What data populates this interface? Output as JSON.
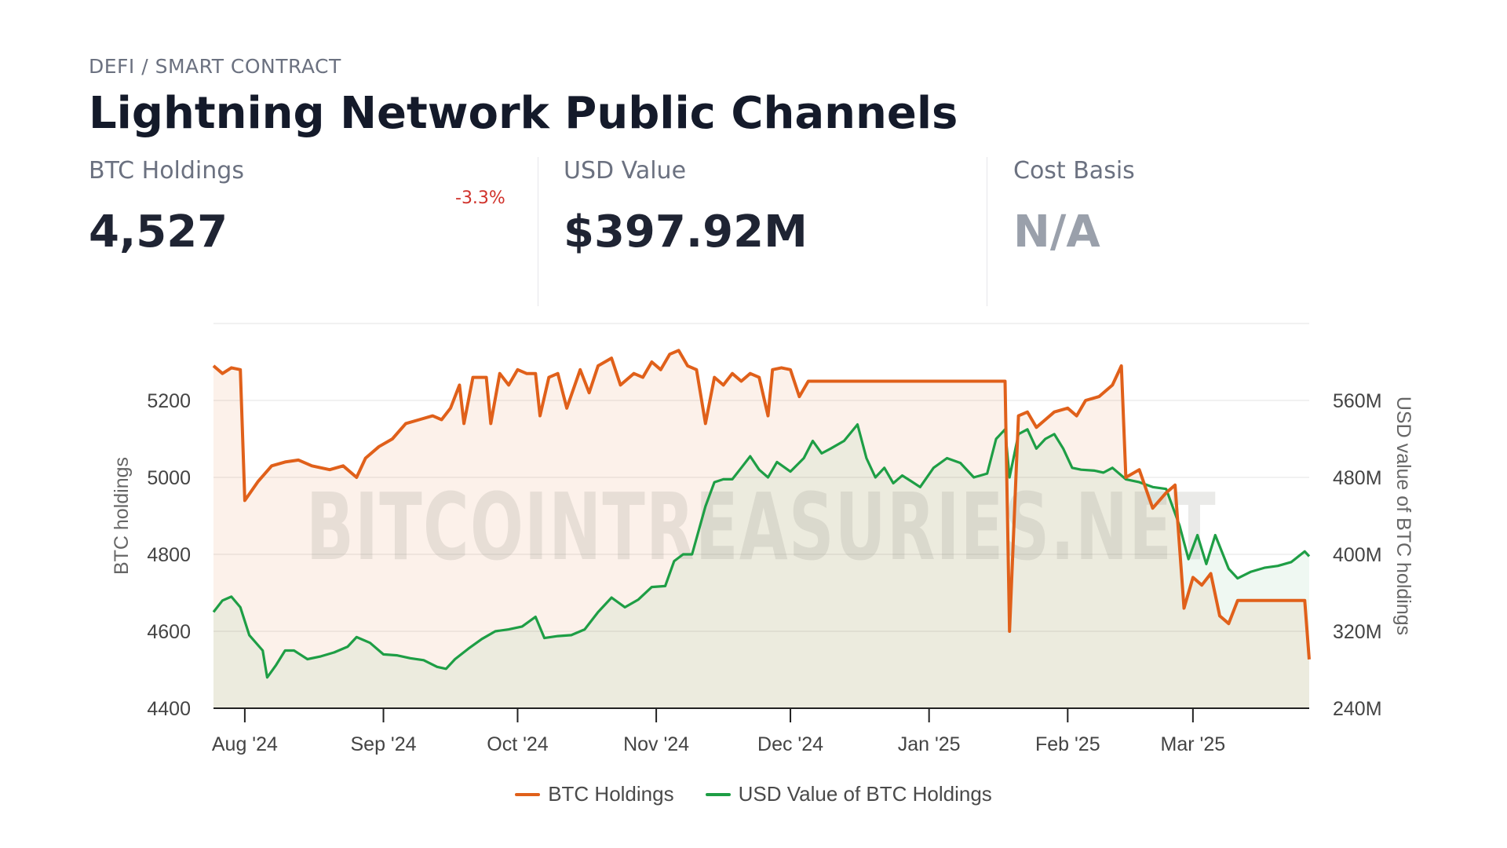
{
  "header": {
    "category": "DEFI / SMART CONTRACT",
    "title": "Lightning Network Public Channels"
  },
  "stats": {
    "btc_holdings": {
      "label": "BTC Holdings",
      "value": "4,527",
      "change": "-3.3%"
    },
    "usd_value": {
      "label": "USD Value",
      "value": "$397.92M"
    },
    "cost_basis": {
      "label": "Cost Basis",
      "value": "N/A"
    }
  },
  "colors": {
    "btc": "#e0601a",
    "usd": "#1e9e45",
    "change_negative": "#d0322b"
  },
  "chart_data": {
    "type": "line",
    "watermark": "BITCOINTREASURIES.NET",
    "x_ticks": [
      "Aug '24",
      "Sep '24",
      "Oct '24",
      "Nov '24",
      "Dec '24",
      "Jan '25",
      "Feb '25",
      "Mar '25"
    ],
    "x_tick_dates": [
      "2024-08-01",
      "2024-09-01",
      "2024-10-01",
      "2024-11-01",
      "2024-12-01",
      "2025-01-01",
      "2025-02-01",
      "2025-03-01"
    ],
    "x_range": [
      "2024-07-25",
      "2025-03-27"
    ],
    "y_left": {
      "label": "BTC holdings",
      "ticks": [
        "5200",
        "5000",
        "4800",
        "4600",
        "4400"
      ],
      "min": 4400,
      "max": 5400
    },
    "y_right": {
      "label": "USD value of BTC holdings",
      "ticks": [
        "560M",
        "480M",
        "400M",
        "320M",
        "240M"
      ],
      "min": 240,
      "max": 640,
      "unit": "M"
    },
    "grid": true,
    "legend_position": "bottom-center",
    "series": [
      {
        "name": "BTC Holdings",
        "axis": "left",
        "points": [
          [
            "2024-07-25",
            5290
          ],
          [
            "2024-07-27",
            5270
          ],
          [
            "2024-07-29",
            5285
          ],
          [
            "2024-07-31",
            5280
          ],
          [
            "2024-08-01",
            4940
          ],
          [
            "2024-08-04",
            4990
          ],
          [
            "2024-08-07",
            5030
          ],
          [
            "2024-08-10",
            5040
          ],
          [
            "2024-08-13",
            5045
          ],
          [
            "2024-08-16",
            5030
          ],
          [
            "2024-08-20",
            5020
          ],
          [
            "2024-08-23",
            5030
          ],
          [
            "2024-08-26",
            5000
          ],
          [
            "2024-08-28",
            5050
          ],
          [
            "2024-08-31",
            5080
          ],
          [
            "2024-09-03",
            5100
          ],
          [
            "2024-09-06",
            5140
          ],
          [
            "2024-09-09",
            5150
          ],
          [
            "2024-09-12",
            5160
          ],
          [
            "2024-09-14",
            5150
          ],
          [
            "2024-09-16",
            5180
          ],
          [
            "2024-09-18",
            5240
          ],
          [
            "2024-09-19",
            5140
          ],
          [
            "2024-09-21",
            5260
          ],
          [
            "2024-09-24",
            5260
          ],
          [
            "2024-09-25",
            5140
          ],
          [
            "2024-09-27",
            5270
          ],
          [
            "2024-09-29",
            5240
          ],
          [
            "2024-10-01",
            5280
          ],
          [
            "2024-10-03",
            5270
          ],
          [
            "2024-10-05",
            5270
          ],
          [
            "2024-10-06",
            5160
          ],
          [
            "2024-10-08",
            5260
          ],
          [
            "2024-10-10",
            5270
          ],
          [
            "2024-10-12",
            5180
          ],
          [
            "2024-10-15",
            5280
          ],
          [
            "2024-10-17",
            5220
          ],
          [
            "2024-10-19",
            5290
          ],
          [
            "2024-10-22",
            5310
          ],
          [
            "2024-10-24",
            5240
          ],
          [
            "2024-10-27",
            5270
          ],
          [
            "2024-10-29",
            5260
          ],
          [
            "2024-10-31",
            5300
          ],
          [
            "2024-11-02",
            5280
          ],
          [
            "2024-11-04",
            5320
          ],
          [
            "2024-11-06",
            5330
          ],
          [
            "2024-11-08",
            5290
          ],
          [
            "2024-11-10",
            5280
          ],
          [
            "2024-11-12",
            5140
          ],
          [
            "2024-11-14",
            5260
          ],
          [
            "2024-11-16",
            5240
          ],
          [
            "2024-11-18",
            5270
          ],
          [
            "2024-11-20",
            5250
          ],
          [
            "2024-11-22",
            5270
          ],
          [
            "2024-11-24",
            5260
          ],
          [
            "2024-11-26",
            5160
          ],
          [
            "2024-11-27",
            5280
          ],
          [
            "2024-11-29",
            5285
          ],
          [
            "2024-12-01",
            5280
          ],
          [
            "2024-12-03",
            5210
          ],
          [
            "2024-12-05",
            5250
          ],
          [
            "2024-12-20",
            5250
          ],
          [
            "2025-01-10",
            5250
          ],
          [
            "2025-01-18",
            5250
          ],
          [
            "2025-01-19",
            4600
          ],
          [
            "2025-01-21",
            5160
          ],
          [
            "2025-01-23",
            5170
          ],
          [
            "2025-01-25",
            5130
          ],
          [
            "2025-01-27",
            5150
          ],
          [
            "2025-01-29",
            5170
          ],
          [
            "2025-02-01",
            5180
          ],
          [
            "2025-02-03",
            5160
          ],
          [
            "2025-02-05",
            5200
          ],
          [
            "2025-02-08",
            5210
          ],
          [
            "2025-02-11",
            5240
          ],
          [
            "2025-02-13",
            5290
          ],
          [
            "2025-02-14",
            5000
          ],
          [
            "2025-02-17",
            5020
          ],
          [
            "2025-02-20",
            4920
          ],
          [
            "2025-02-23",
            4960
          ],
          [
            "2025-02-25",
            4980
          ],
          [
            "2025-02-27",
            4660
          ],
          [
            "2025-03-01",
            4740
          ],
          [
            "2025-03-03",
            4720
          ],
          [
            "2025-03-05",
            4750
          ],
          [
            "2025-03-07",
            4640
          ],
          [
            "2025-03-09",
            4620
          ],
          [
            "2025-03-11",
            4680
          ],
          [
            "2025-03-20",
            4680
          ],
          [
            "2025-03-26",
            4680
          ],
          [
            "2025-03-27",
            4527
          ]
        ]
      },
      {
        "name": "USD Value of BTC Holdings",
        "axis": "right",
        "points": [
          [
            "2024-07-25",
            340
          ],
          [
            "2024-07-27",
            352
          ],
          [
            "2024-07-29",
            356
          ],
          [
            "2024-07-31",
            345
          ],
          [
            "2024-08-02",
            316
          ],
          [
            "2024-08-05",
            300
          ],
          [
            "2024-08-06",
            272
          ],
          [
            "2024-08-08",
            285
          ],
          [
            "2024-08-10",
            300
          ],
          [
            "2024-08-12",
            300
          ],
          [
            "2024-08-15",
            291
          ],
          [
            "2024-08-18",
            294
          ],
          [
            "2024-08-21",
            298
          ],
          [
            "2024-08-24",
            304
          ],
          [
            "2024-08-26",
            314
          ],
          [
            "2024-08-29",
            308
          ],
          [
            "2024-09-01",
            296
          ],
          [
            "2024-09-04",
            295
          ],
          [
            "2024-09-07",
            292
          ],
          [
            "2024-09-10",
            290
          ],
          [
            "2024-09-13",
            283
          ],
          [
            "2024-09-15",
            281
          ],
          [
            "2024-09-17",
            291
          ],
          [
            "2024-09-20",
            302
          ],
          [
            "2024-09-23",
            312
          ],
          [
            "2024-09-26",
            320
          ],
          [
            "2024-09-29",
            322
          ],
          [
            "2024-10-02",
            325
          ],
          [
            "2024-10-05",
            335
          ],
          [
            "2024-10-07",
            313
          ],
          [
            "2024-10-10",
            315
          ],
          [
            "2024-10-13",
            316
          ],
          [
            "2024-10-16",
            322
          ],
          [
            "2024-10-19",
            340
          ],
          [
            "2024-10-22",
            355
          ],
          [
            "2024-10-25",
            345
          ],
          [
            "2024-10-28",
            353
          ],
          [
            "2024-10-31",
            366
          ],
          [
            "2024-11-03",
            367
          ],
          [
            "2024-11-05",
            393
          ],
          [
            "2024-11-07",
            400
          ],
          [
            "2024-11-09",
            400
          ],
          [
            "2024-11-12",
            450
          ],
          [
            "2024-11-14",
            475
          ],
          [
            "2024-11-16",
            478
          ],
          [
            "2024-11-18",
            478
          ],
          [
            "2024-11-20",
            490
          ],
          [
            "2024-11-22",
            502
          ],
          [
            "2024-11-24",
            488
          ],
          [
            "2024-11-26",
            480
          ],
          [
            "2024-11-28",
            496
          ],
          [
            "2024-12-01",
            486
          ],
          [
            "2024-12-04",
            500
          ],
          [
            "2024-12-06",
            518
          ],
          [
            "2024-12-08",
            505
          ],
          [
            "2024-12-10",
            510
          ],
          [
            "2024-12-13",
            518
          ],
          [
            "2024-12-16",
            535
          ],
          [
            "2024-12-18",
            500
          ],
          [
            "2024-12-20",
            480
          ],
          [
            "2024-12-22",
            490
          ],
          [
            "2024-12-24",
            474
          ],
          [
            "2024-12-26",
            482
          ],
          [
            "2024-12-28",
            476
          ],
          [
            "2024-12-30",
            470
          ],
          [
            "2025-01-02",
            490
          ],
          [
            "2025-01-05",
            500
          ],
          [
            "2025-01-08",
            495
          ],
          [
            "2025-01-11",
            480
          ],
          [
            "2025-01-14",
            484
          ],
          [
            "2025-01-16",
            520
          ],
          [
            "2025-01-18",
            530
          ],
          [
            "2025-01-19",
            480
          ],
          [
            "2025-01-21",
            525
          ],
          [
            "2025-01-23",
            530
          ],
          [
            "2025-01-25",
            510
          ],
          [
            "2025-01-27",
            520
          ],
          [
            "2025-01-29",
            525
          ],
          [
            "2025-01-31",
            510
          ],
          [
            "2025-02-02",
            490
          ],
          [
            "2025-02-04",
            488
          ],
          [
            "2025-02-07",
            487
          ],
          [
            "2025-02-09",
            485
          ],
          [
            "2025-02-11",
            490
          ],
          [
            "2025-02-14",
            478
          ],
          [
            "2025-02-17",
            475
          ],
          [
            "2025-02-20",
            470
          ],
          [
            "2025-02-23",
            468
          ],
          [
            "2025-02-26",
            430
          ],
          [
            "2025-02-28",
            395
          ],
          [
            "2025-03-02",
            420
          ],
          [
            "2025-03-04",
            390
          ],
          [
            "2025-03-06",
            420
          ],
          [
            "2025-03-09",
            385
          ],
          [
            "2025-03-11",
            375
          ],
          [
            "2025-03-14",
            382
          ],
          [
            "2025-03-17",
            386
          ],
          [
            "2025-03-20",
            388
          ],
          [
            "2025-03-23",
            392
          ],
          [
            "2025-03-26",
            403
          ],
          [
            "2025-03-27",
            397.92
          ]
        ]
      }
    ]
  }
}
